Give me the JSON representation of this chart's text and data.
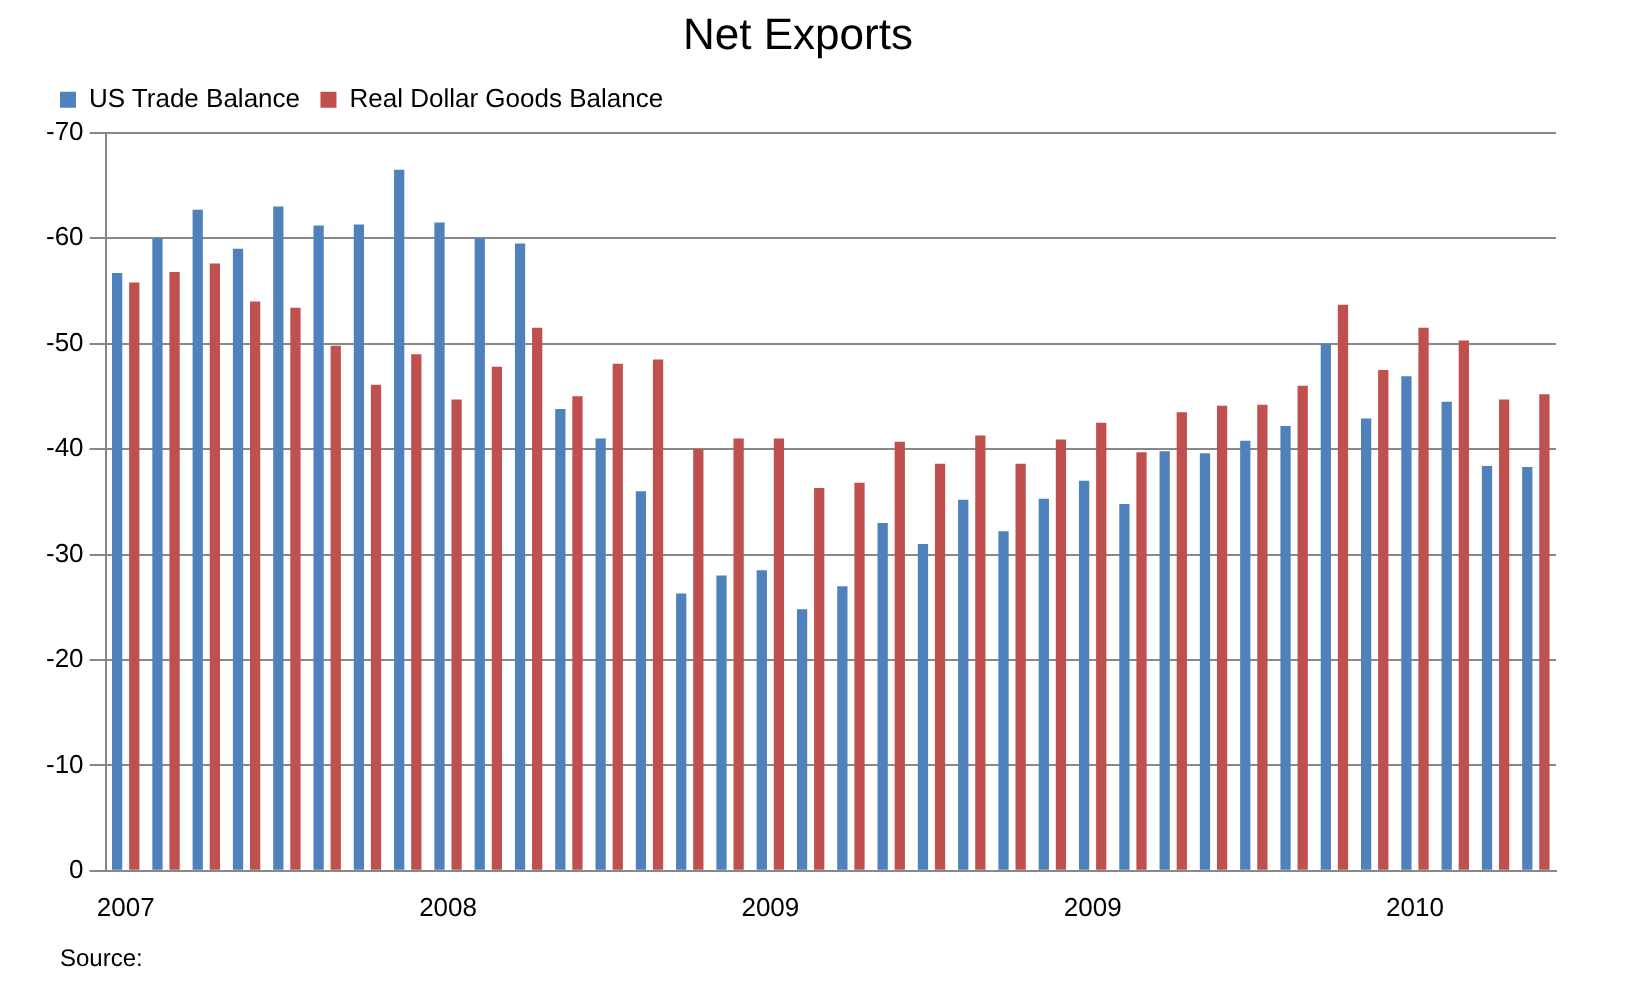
{
  "chart_data": {
    "type": "bar",
    "title": "Net Exports",
    "categories": [
      "2007",
      null,
      null,
      null,
      null,
      null,
      null,
      null,
      "2008",
      null,
      null,
      null,
      null,
      null,
      null,
      null,
      "2009",
      null,
      null,
      null,
      null,
      null,
      null,
      null,
      "2009",
      null,
      null,
      null,
      null,
      null,
      null,
      null,
      "2010",
      null,
      null,
      null
    ],
    "series": [
      {
        "name": "US Trade Balance",
        "color": "#4f81bd",
        "values": [
          -56.7,
          -60,
          -62.7,
          -59,
          -63,
          -61.2,
          -61.3,
          -66.5,
          -61.5,
          -60,
          -59.5,
          -43.8,
          -41,
          -36,
          -26.3,
          -28,
          -28.5,
          -24.8,
          -27,
          -33,
          -31,
          -35.2,
          -32.2,
          -35.3,
          -37,
          -34.8,
          -39.8,
          -39.6,
          -40.8,
          -42.2,
          -50,
          -42.9,
          -46.9,
          -44.5,
          -38.4,
          -38.3
        ]
      },
      {
        "name": "Real Dollar Goods Balance",
        "color": "#c0504d",
        "values": [
          -55.8,
          -56.8,
          -57.6,
          -54,
          -53.4,
          -49.8,
          -46.1,
          -49,
          -44.7,
          -47.8,
          -51.5,
          -45,
          -48.1,
          -48.5,
          -40,
          -41,
          -41,
          -36.3,
          -36.8,
          -40.7,
          -38.6,
          -41.3,
          -38.6,
          -40.9,
          -42.5,
          -39.7,
          -43.5,
          -44.1,
          -44.2,
          -46,
          -53.7,
          -47.5,
          -51.5,
          -50.3,
          -44.7,
          -45.2
        ]
      }
    ],
    "ylim": [
      0,
      -70
    ],
    "yticks": [
      0,
      -10,
      -20,
      -30,
      -40,
      -50,
      -60,
      -70
    ],
    "grid": "y",
    "legend": "top left",
    "annotations": [
      "Source:"
    ]
  }
}
